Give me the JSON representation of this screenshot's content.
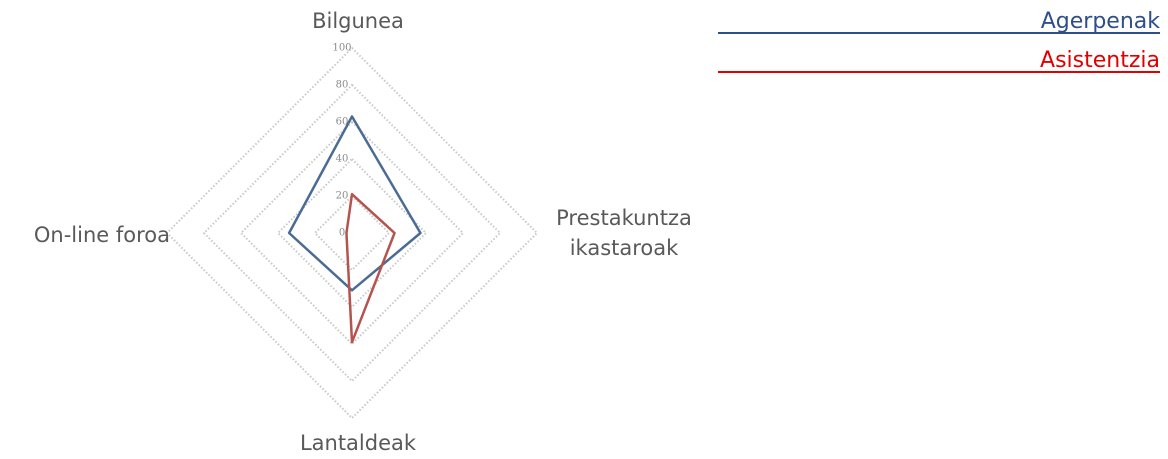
{
  "chart_data": {
    "type": "radar",
    "categories": [
      "Bilgunea",
      "Prestakuntza ikastaroak",
      "Lantaldeak",
      "On-line foroa"
    ],
    "series": [
      {
        "name": "Agerpenak",
        "color": "#4a6c94",
        "values": [
          63,
          37,
          31,
          34
        ]
      },
      {
        "name": "Asistentzia",
        "color": "#b5534e",
        "values": [
          21,
          23,
          59,
          3
        ]
      }
    ],
    "rlim": [
      0,
      100
    ],
    "rticks": [
      0,
      20,
      40,
      60,
      80,
      100
    ],
    "grid": true,
    "legend": "top-right"
  }
}
